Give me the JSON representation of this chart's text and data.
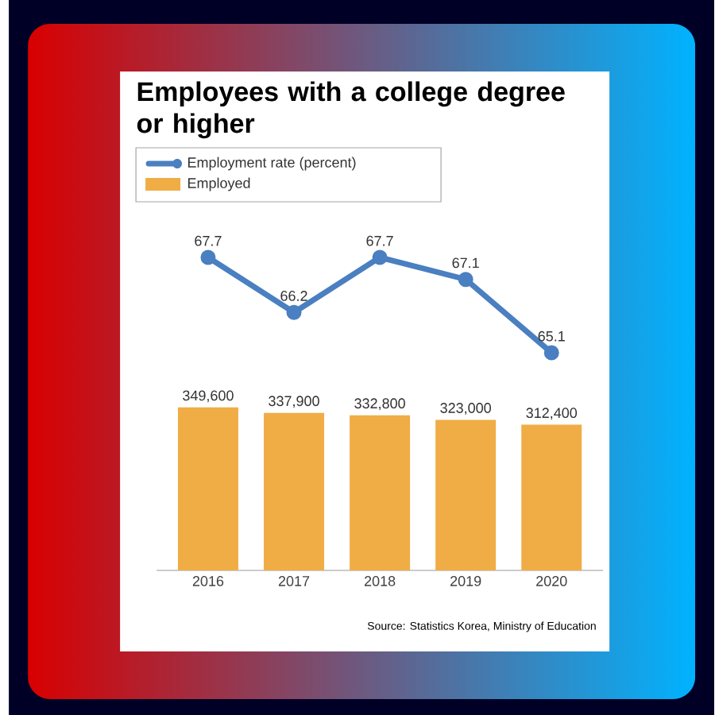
{
  "chart_data": [
    {
      "type": "line",
      "title": "Employees with a college degree or higher",
      "categories": [
        "2016",
        "2017",
        "2018",
        "2019",
        "2020"
      ],
      "series": [
        {
          "name": "Employment rate (percent)",
          "color": "#4a7fc1",
          "values": [
            67.7,
            66.2,
            67.7,
            67.1,
            65.1
          ],
          "value_labels": [
            "67.7",
            "66.2",
            "67.7",
            "67.1",
            "65.1"
          ]
        }
      ],
      "marker": "circle",
      "line_style": "solid",
      "legend": "top left",
      "tick_labels": false
    },
    {
      "type": "bar",
      "categories": [
        "2016",
        "2017",
        "2018",
        "2019",
        "2020"
      ],
      "series": [
        {
          "name": "Employed",
          "color": "#f0ad45",
          "values": [
            349600,
            337900,
            332800,
            323000,
            312400
          ],
          "value_labels": [
            "349,600",
            "337,900",
            "332,800",
            "323,000",
            "312,400"
          ]
        }
      ],
      "legend": "top left",
      "tick_labels": "x",
      "annotations": [
        "Source: Statistics Korea, Ministry of Education"
      ]
    }
  ]
}
